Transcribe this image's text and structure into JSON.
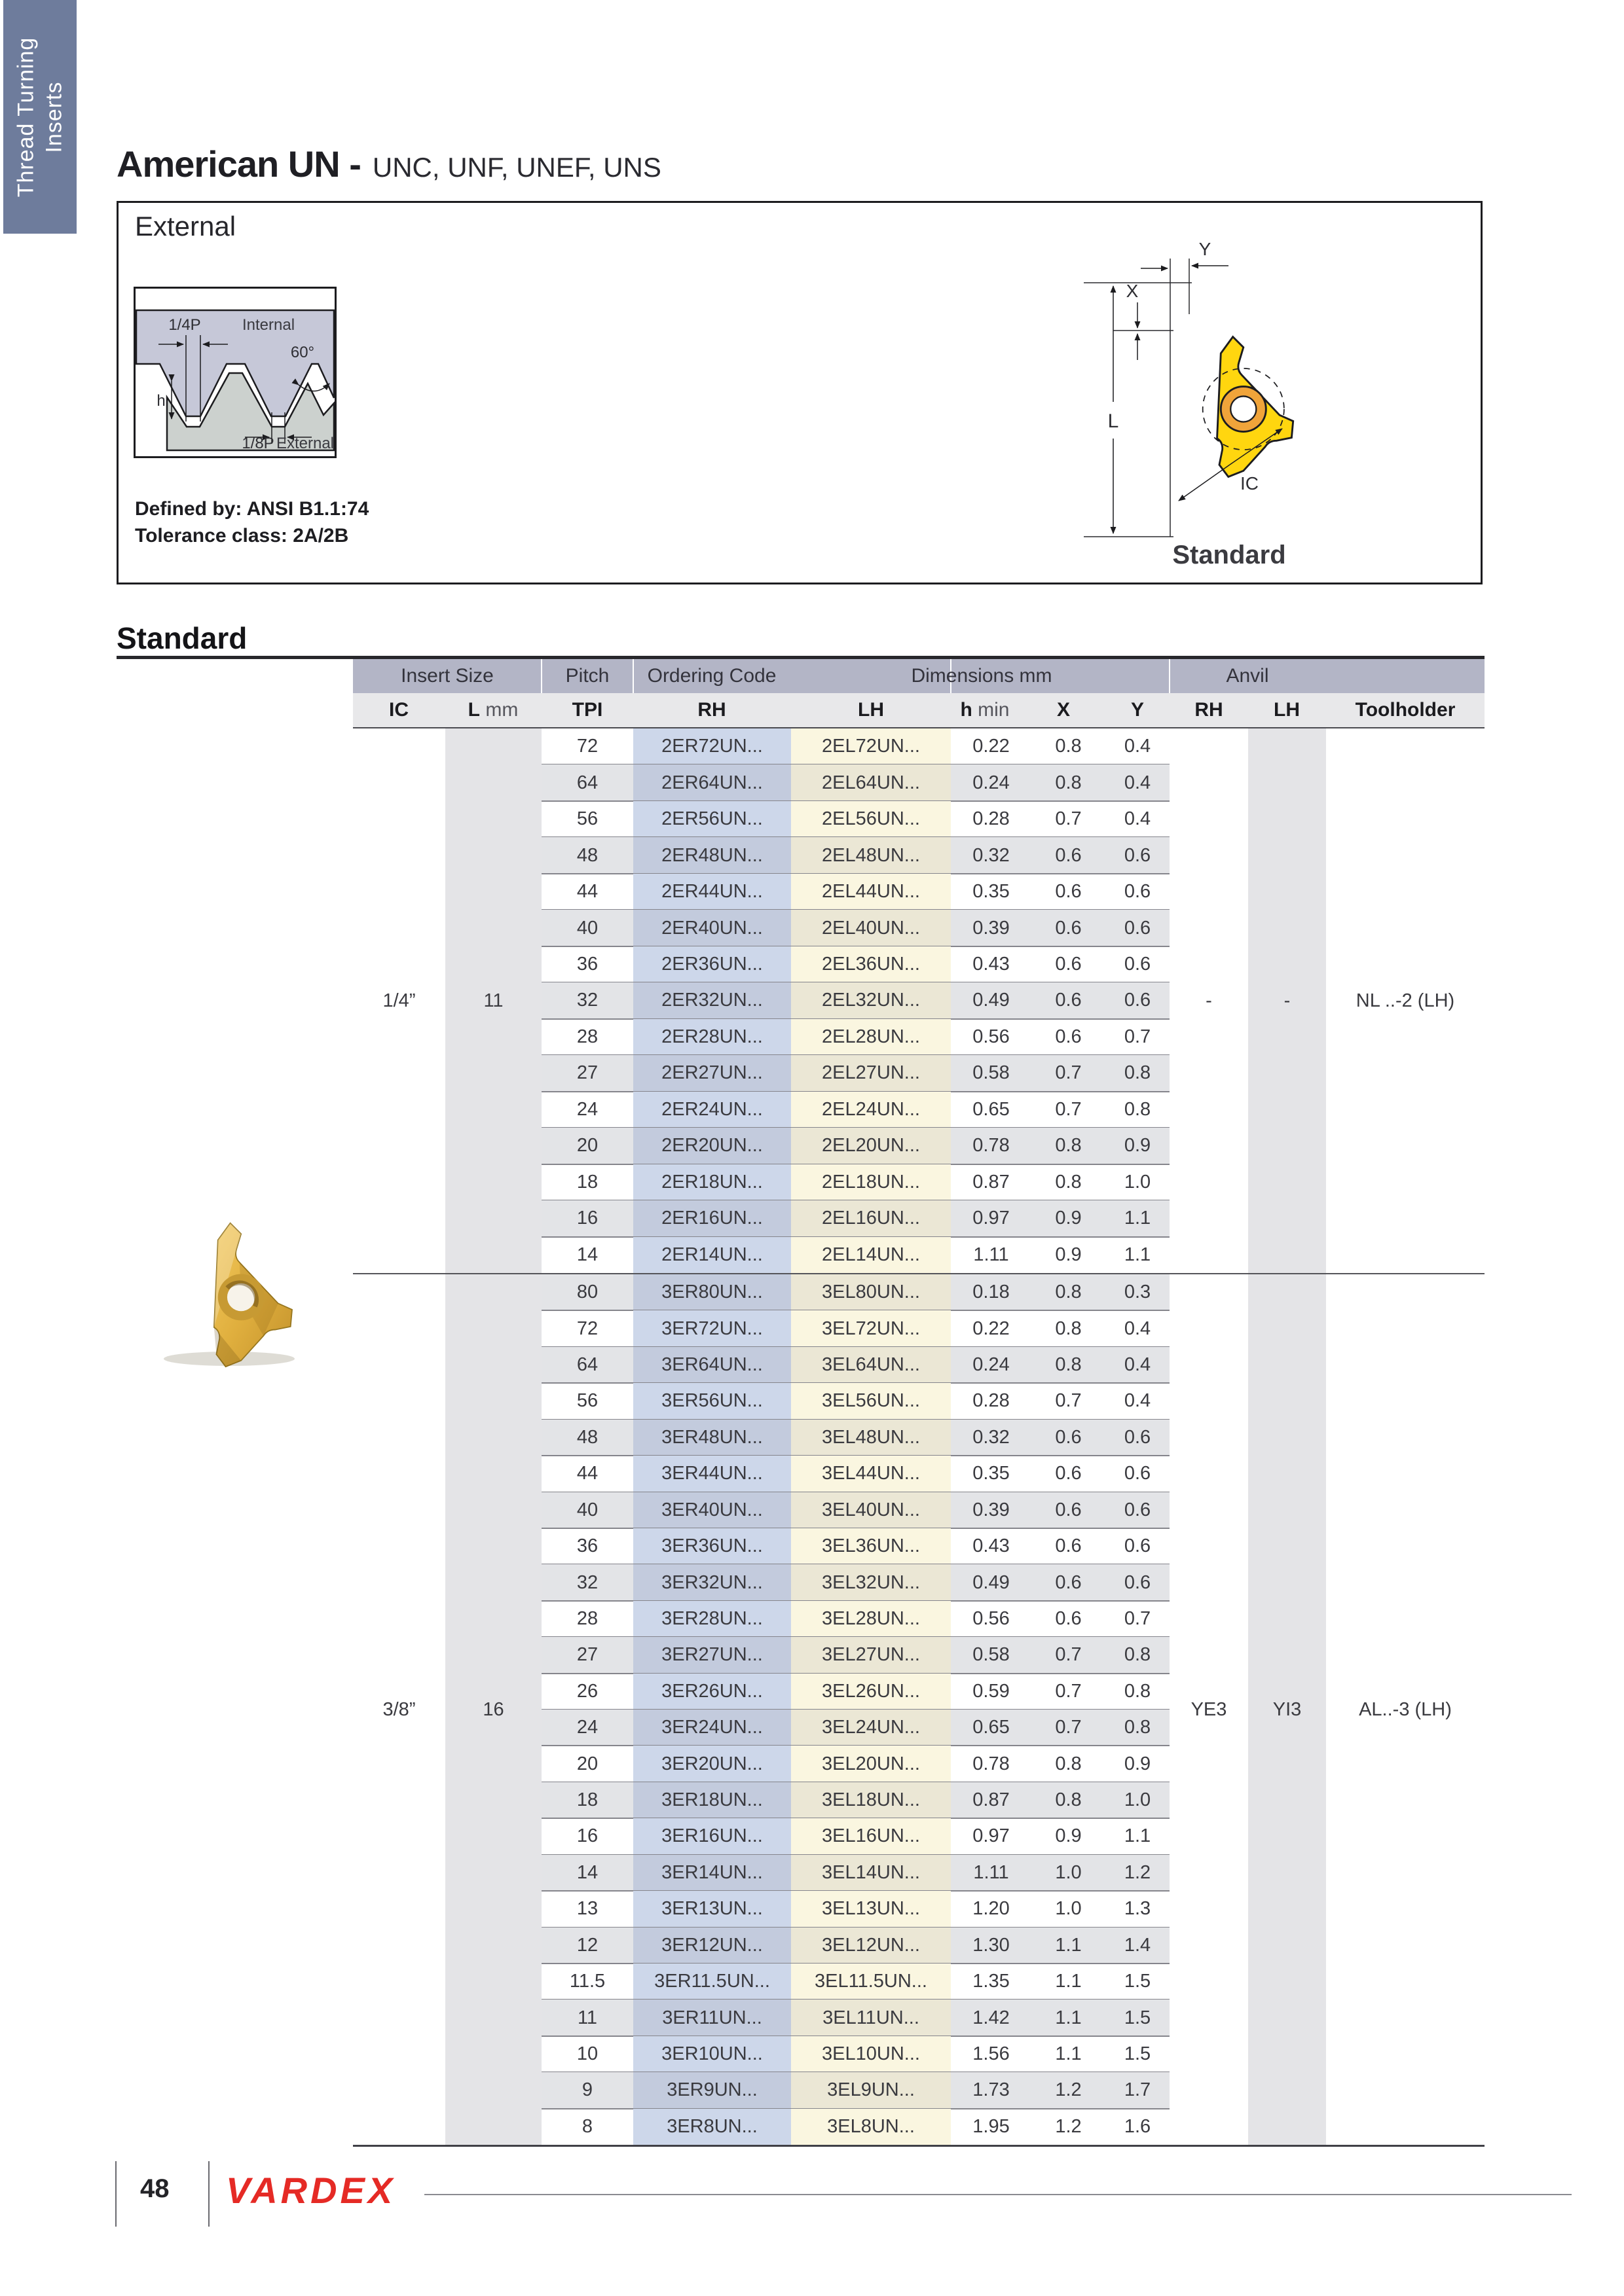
{
  "sidebar": {
    "line1": "Thread Turning",
    "line2": "Inserts"
  },
  "header": {
    "title_main": "American UN -",
    "title_tail": "UNC, UNF, UNEF, UNS"
  },
  "external_box": {
    "label": "External",
    "defined_by": "Defined by: ANSI B1.1:74",
    "tolerance": "Tolerance class: 2A/2B",
    "profile": {
      "quarter_p": "1/4P",
      "internal": "Internal",
      "angle": "60°",
      "h": "h",
      "eighth_p": "1/8P",
      "external": "External"
    },
    "insert_diagram": {
      "x": "X",
      "y": "Y",
      "l": "L",
      "ic": "IC",
      "caption": "Standard"
    }
  },
  "section": {
    "heading": "Standard"
  },
  "table": {
    "group_headers": [
      "Insert Size",
      "Pitch",
      "Ordering Code",
      "Dimensions mm",
      "Anvil"
    ],
    "sub_headers": [
      {
        "b": "IC",
        "r": ""
      },
      {
        "b": "L",
        "r": " mm"
      },
      {
        "b": "TPI",
        "r": ""
      },
      {
        "b": "RH",
        "r": ""
      },
      {
        "b": "LH",
        "r": ""
      },
      {
        "b": "h",
        "r": " min"
      },
      {
        "b": "X",
        "r": ""
      },
      {
        "b": "Y",
        "r": ""
      },
      {
        "b": "RH",
        "r": ""
      },
      {
        "b": "LH",
        "r": ""
      },
      {
        "b": "Toolholder",
        "r": ""
      }
    ],
    "groups": [
      {
        "ic": "1/4”",
        "l_mm": "11",
        "anvil_rh": "-",
        "anvil_lh": "-",
        "toolholder": "NL ..-2 (LH)",
        "rows": [
          [
            "72",
            "2ER72UN...",
            "2EL72UN...",
            "0.22",
            "0.8",
            "0.4"
          ],
          [
            "64",
            "2ER64UN...",
            "2EL64UN...",
            "0.24",
            "0.8",
            "0.4"
          ],
          [
            "56",
            "2ER56UN...",
            "2EL56UN...",
            "0.28",
            "0.7",
            "0.4"
          ],
          [
            "48",
            "2ER48UN...",
            "2EL48UN...",
            "0.32",
            "0.6",
            "0.6"
          ],
          [
            "44",
            "2ER44UN...",
            "2EL44UN...",
            "0.35",
            "0.6",
            "0.6"
          ],
          [
            "40",
            "2ER40UN...",
            "2EL40UN...",
            "0.39",
            "0.6",
            "0.6"
          ],
          [
            "36",
            "2ER36UN...",
            "2EL36UN...",
            "0.43",
            "0.6",
            "0.6"
          ],
          [
            "32",
            "2ER32UN...",
            "2EL32UN...",
            "0.49",
            "0.6",
            "0.6"
          ],
          [
            "28",
            "2ER28UN...",
            "2EL28UN...",
            "0.56",
            "0.6",
            "0.7"
          ],
          [
            "27",
            "2ER27UN...",
            "2EL27UN...",
            "0.58",
            "0.7",
            "0.8"
          ],
          [
            "24",
            "2ER24UN...",
            "2EL24UN...",
            "0.65",
            "0.7",
            "0.8"
          ],
          [
            "20",
            "2ER20UN...",
            "2EL20UN...",
            "0.78",
            "0.8",
            "0.9"
          ],
          [
            "18",
            "2ER18UN...",
            "2EL18UN...",
            "0.87",
            "0.8",
            "1.0"
          ],
          [
            "16",
            "2ER16UN...",
            "2EL16UN...",
            "0.97",
            "0.9",
            "1.1"
          ],
          [
            "14",
            "2ER14UN...",
            "2EL14UN...",
            "1.11",
            "0.9",
            "1.1"
          ]
        ]
      },
      {
        "ic": "3/8”",
        "l_mm": "16",
        "anvil_rh": "YE3",
        "anvil_lh": "YI3",
        "toolholder": "AL..-3 (LH)",
        "rows": [
          [
            "80",
            "3ER80UN...",
            "3EL80UN...",
            "0.18",
            "0.8",
            "0.3"
          ],
          [
            "72",
            "3ER72UN...",
            "3EL72UN...",
            "0.22",
            "0.8",
            "0.4"
          ],
          [
            "64",
            "3ER64UN...",
            "3EL64UN...",
            "0.24",
            "0.8",
            "0.4"
          ],
          [
            "56",
            "3ER56UN...",
            "3EL56UN...",
            "0.28",
            "0.7",
            "0.4"
          ],
          [
            "48",
            "3ER48UN...",
            "3EL48UN...",
            "0.32",
            "0.6",
            "0.6"
          ],
          [
            "44",
            "3ER44UN...",
            "3EL44UN...",
            "0.35",
            "0.6",
            "0.6"
          ],
          [
            "40",
            "3ER40UN...",
            "3EL40UN...",
            "0.39",
            "0.6",
            "0.6"
          ],
          [
            "36",
            "3ER36UN...",
            "3EL36UN...",
            "0.43",
            "0.6",
            "0.6"
          ],
          [
            "32",
            "3ER32UN...",
            "3EL32UN...",
            "0.49",
            "0.6",
            "0.6"
          ],
          [
            "28",
            "3ER28UN...",
            "3EL28UN...",
            "0.56",
            "0.6",
            "0.7"
          ],
          [
            "27",
            "3ER27UN...",
            "3EL27UN...",
            "0.58",
            "0.7",
            "0.8"
          ],
          [
            "26",
            "3ER26UN...",
            "3EL26UN...",
            "0.59",
            "0.7",
            "0.8"
          ],
          [
            "24",
            "3ER24UN...",
            "3EL24UN...",
            "0.65",
            "0.7",
            "0.8"
          ],
          [
            "20",
            "3ER20UN...",
            "3EL20UN...",
            "0.78",
            "0.8",
            "0.9"
          ],
          [
            "18",
            "3ER18UN...",
            "3EL18UN...",
            "0.87",
            "0.8",
            "1.0"
          ],
          [
            "16",
            "3ER16UN...",
            "3EL16UN...",
            "0.97",
            "0.9",
            "1.1"
          ],
          [
            "14",
            "3ER14UN...",
            "3EL14UN...",
            "1.11",
            "1.0",
            "1.2"
          ],
          [
            "13",
            "3ER13UN...",
            "3EL13UN...",
            "1.20",
            "1.0",
            "1.3"
          ],
          [
            "12",
            "3ER12UN...",
            "3EL12UN...",
            "1.30",
            "1.1",
            "1.4"
          ],
          [
            "11.5",
            "3ER11.5UN...",
            "3EL11.5UN...",
            "1.35",
            "1.1",
            "1.5"
          ],
          [
            "11",
            "3ER11UN...",
            "3EL11UN...",
            "1.42",
            "1.1",
            "1.5"
          ],
          [
            "10",
            "3ER10UN...",
            "3EL10UN...",
            "1.56",
            "1.1",
            "1.5"
          ],
          [
            "9",
            "3ER9UN...",
            "3EL9UN...",
            "1.73",
            "1.2",
            "1.7"
          ],
          [
            "8",
            "3ER8UN...",
            "3EL8UN...",
            "1.95",
            "1.2",
            "1.6"
          ]
        ]
      }
    ]
  },
  "footer": {
    "page_number": "48",
    "brand": "VARDEX"
  },
  "colors": {
    "tab": "#6e7c9c",
    "header_band": "#b3b5c6",
    "subheader_band": "#e8e8ea",
    "stripe": "#e3e4e7",
    "col_band": "#e4e4e7",
    "rh_light": "#cdd7ea",
    "rh_dark": "#c3cbdd",
    "lh_light": "#faf6e0",
    "lh_dark": "#ebe7d5",
    "insert_yellow": "#ffd60f",
    "insert_ring": "#f0a43a",
    "brand_red": "#e52a25"
  }
}
